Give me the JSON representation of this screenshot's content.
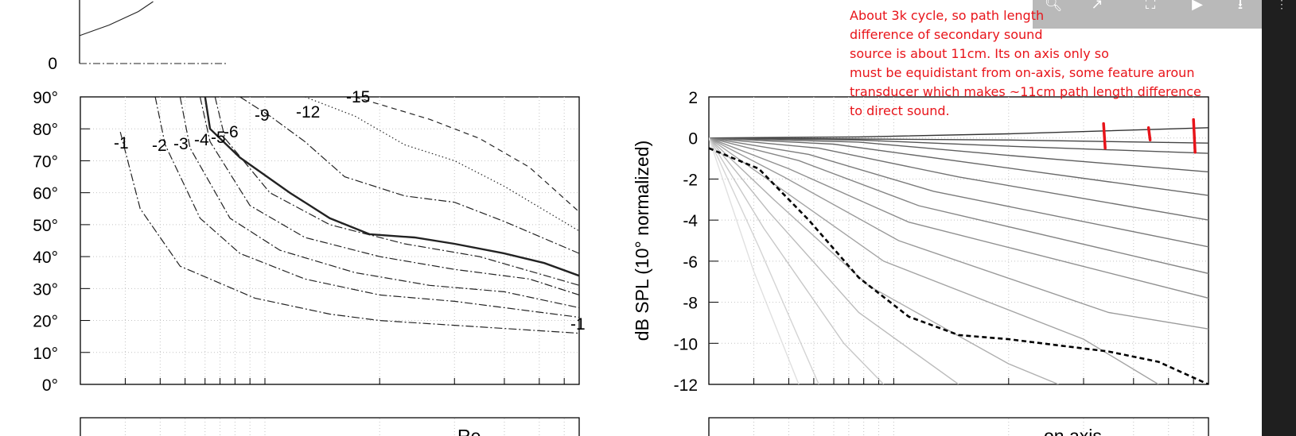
{
  "toolbar": {
    "icons": [
      "zoom-icon",
      "open-external-icon",
      "fullscreen-icon",
      "play-icon",
      "download-icon"
    ]
  },
  "annotation": {
    "lines": [
      "About 3k cycle, so path length",
      "difference of secondary sound",
      "source is about  11cm. Its on axis only so",
      "must be equidistant from  on-axis, some feature aroun",
      "transducer which makes ~11cm path length difference",
      "to direct sound."
    ],
    "color": "#e8141a"
  },
  "chart_data": [
    {
      "type": "line",
      "panel": "top-left-partial",
      "y_ticks": [
        "0"
      ],
      "series": [
        {
          "kind": "curve",
          "values": [
            [
              0,
              0.45
            ],
            [
              0.2,
              0.62
            ],
            [
              0.4,
              0.84
            ],
            [
              0.5,
              1.0
            ]
          ]
        },
        {
          "kind": "baseline",
          "style": "dash-dot",
          "values": [
            [
              0,
              0
            ],
            [
              1,
              0
            ]
          ]
        }
      ]
    },
    {
      "type": "line",
      "panel": "contour-polar",
      "y_ticks": [
        "90°",
        "80°",
        "70°",
        "60°",
        "50°",
        "40°",
        "30°",
        "20°",
        "10°",
        "0°"
      ],
      "ylim": [
        0,
        90
      ],
      "xscale": "log",
      "grid": true,
      "contour_labels": [
        "-1",
        "-2",
        "-3",
        "-4",
        "-5",
        "-6",
        "-9",
        "-12",
        "-15",
        "-1"
      ],
      "contours": [
        {
          "level": -1,
          "style": "dash-dot",
          "values": [
            [
              0.08,
              79
            ],
            [
              0.12,
              55
            ],
            [
              0.2,
              37
            ],
            [
              0.35,
              27
            ],
            [
              0.5,
              22
            ],
            [
              0.6,
              20
            ],
            [
              0.7,
              19
            ],
            [
              0.8,
              18
            ],
            [
              0.9,
              17
            ],
            [
              1.0,
              16
            ]
          ]
        },
        {
          "level": -2,
          "style": "dash-dot",
          "values": [
            [
              0.15,
              90
            ],
            [
              0.17,
              75
            ],
            [
              0.24,
              52
            ],
            [
              0.32,
              41
            ],
            [
              0.45,
              33
            ],
            [
              0.6,
              28
            ],
            [
              0.75,
              26
            ],
            [
              1.0,
              21
            ]
          ]
        },
        {
          "level": -3,
          "style": "dash-dot",
          "values": [
            [
              0.2,
              90
            ],
            [
              0.22,
              74
            ],
            [
              0.3,
              52
            ],
            [
              0.4,
              42
            ],
            [
              0.55,
              35
            ],
            [
              0.7,
              31
            ],
            [
              0.85,
              29
            ],
            [
              1.0,
              24
            ]
          ]
        },
        {
          "level": -4,
          "style": "dash-dot",
          "values": [
            [
              0.24,
              90
            ],
            [
              0.26,
              76
            ],
            [
              0.34,
              56
            ],
            [
              0.45,
              46
            ],
            [
              0.6,
              40
            ],
            [
              0.75,
              36
            ],
            [
              0.9,
              33
            ],
            [
              1.0,
              28
            ]
          ]
        },
        {
          "level": -5,
          "style": "dash-dot",
          "values": [
            [
              0.27,
              90
            ],
            [
              0.29,
              77
            ],
            [
              0.38,
              60
            ],
            [
              0.5,
              50
            ],
            [
              0.65,
              44
            ],
            [
              0.8,
              40
            ],
            [
              1.0,
              31
            ]
          ]
        },
        {
          "level": -6,
          "style": "solid-bold",
          "values": [
            [
              0.25,
              90
            ],
            [
              0.26,
              80
            ],
            [
              0.32,
              71
            ],
            [
              0.42,
              60
            ],
            [
              0.5,
              52
            ],
            [
              0.58,
              47
            ],
            [
              0.67,
              46
            ],
            [
              0.75,
              44
            ],
            [
              0.85,
              41
            ],
            [
              0.93,
              38
            ],
            [
              1.0,
              34
            ]
          ]
        },
        {
          "level": -9,
          "style": "dash-dot",
          "values": [
            [
              0.32,
              90
            ],
            [
              0.38,
              84
            ],
            [
              0.45,
              76
            ],
            [
              0.53,
              65
            ],
            [
              0.65,
              59
            ],
            [
              0.75,
              57
            ],
            [
              0.85,
              51
            ],
            [
              1.0,
              41
            ]
          ]
        },
        {
          "level": -12,
          "style": "dotted",
          "values": [
            [
              0.45,
              90
            ],
            [
              0.55,
              84
            ],
            [
              0.65,
              75
            ],
            [
              0.75,
              70
            ],
            [
              0.85,
              62
            ],
            [
              1.0,
              48
            ]
          ]
        },
        {
          "level": -15,
          "style": "dashed",
          "values": [
            [
              0.55,
              90
            ],
            [
              0.7,
              83
            ],
            [
              0.8,
              77
            ],
            [
              0.9,
              68
            ],
            [
              1.0,
              54
            ]
          ]
        }
      ]
    },
    {
      "type": "line",
      "panel": "normalized-spl",
      "ylabel": "dB SPL (10° normalized)",
      "y_ticks": [
        "2",
        "0",
        "-2",
        "-4",
        "-6",
        "-8",
        "-10",
        "-12"
      ],
      "ylim": [
        -12,
        2
      ],
      "xscale": "log",
      "grid": true,
      "series": [
        {
          "gray": "#333333",
          "values": [
            [
              0,
              0
            ],
            [
              0.3,
              0.05
            ],
            [
              0.6,
              0.2
            ],
            [
              0.8,
              0.35
            ],
            [
              1.0,
              0.5
            ]
          ]
        },
        {
          "gray": "#444444",
          "values": [
            [
              0,
              0
            ],
            [
              0.3,
              -0.05
            ],
            [
              0.6,
              -0.1
            ],
            [
              1.0,
              -0.25
            ]
          ]
        },
        {
          "gray": "#555555",
          "values": [
            [
              0,
              0
            ],
            [
              0.3,
              -0.1
            ],
            [
              0.6,
              -0.4
            ],
            [
              1.0,
              -0.75
            ]
          ]
        },
        {
          "gray": "#5f5f5f",
          "values": [
            [
              0,
              0
            ],
            [
              0.3,
              -0.2
            ],
            [
              0.6,
              -0.85
            ],
            [
              1.0,
              -1.65
            ]
          ]
        },
        {
          "gray": "#686868",
          "values": [
            [
              0,
              0
            ],
            [
              0.25,
              -0.3
            ],
            [
              0.55,
              -1.3
            ],
            [
              1.0,
              -2.8
            ]
          ]
        },
        {
          "gray": "#727272",
          "values": [
            [
              0,
              0
            ],
            [
              0.22,
              -0.5
            ],
            [
              0.5,
              -1.9
            ],
            [
              1.0,
              -4.0
            ]
          ]
        },
        {
          "gray": "#7c7c7c",
          "values": [
            [
              0,
              0
            ],
            [
              0.2,
              -0.8
            ],
            [
              0.45,
              -2.6
            ],
            [
              1.0,
              -5.3
            ]
          ]
        },
        {
          "gray": "#868686",
          "values": [
            [
              0,
              0
            ],
            [
              0.18,
              -1.1
            ],
            [
              0.42,
              -3.3
            ],
            [
              1.0,
              -6.6
            ]
          ]
        },
        {
          "gray": "#909090",
          "values": [
            [
              0,
              0
            ],
            [
              0.16,
              -1.5
            ],
            [
              0.4,
              -4.1
            ],
            [
              1.0,
              -7.8
            ]
          ]
        },
        {
          "gray": "#9a9a9a",
          "values": [
            [
              0,
              0
            ],
            [
              0.15,
              -1.9
            ],
            [
              0.38,
              -5.0
            ],
            [
              0.8,
              -8.5
            ],
            [
              1.0,
              -9.3
            ]
          ]
        },
        {
          "gray": "#a4a4a4",
          "values": [
            [
              0,
              0
            ],
            [
              0.14,
              -2.4
            ],
            [
              0.35,
              -6.0
            ],
            [
              0.75,
              -9.8
            ],
            [
              0.9,
              -12
            ]
          ]
        },
        {
          "gray": "#b0b0b0",
          "values": [
            [
              0,
              0
            ],
            [
              0.13,
              -3.0
            ],
            [
              0.32,
              -7.2
            ],
            [
              0.6,
              -11.0
            ],
            [
              0.7,
              -12
            ]
          ]
        },
        {
          "gray": "#bcbcbc",
          "values": [
            [
              0,
              0
            ],
            [
              0.12,
              -3.6
            ],
            [
              0.3,
              -8.5
            ],
            [
              0.5,
              -12
            ]
          ]
        },
        {
          "gray": "#c8c8c8",
          "values": [
            [
              0,
              0
            ],
            [
              0.11,
              -4.4
            ],
            [
              0.27,
              -10.0
            ],
            [
              0.35,
              -12
            ]
          ]
        },
        {
          "gray": "#d4d4d4",
          "values": [
            [
              0,
              0
            ],
            [
              0.1,
              -5.3
            ],
            [
              0.22,
              -12
            ]
          ]
        },
        {
          "gray": "#e0e0e0",
          "values": [
            [
              0,
              0
            ],
            [
              0.09,
              -6.5
            ],
            [
              0.18,
              -12
            ]
          ]
        },
        {
          "gray": "#000000",
          "dashed": true,
          "values": [
            [
              0,
              -0.5
            ],
            [
              0.1,
              -1.5
            ],
            [
              0.2,
              -4.0
            ],
            [
              0.3,
              -6.8
            ],
            [
              0.4,
              -8.7
            ],
            [
              0.5,
              -9.6
            ],
            [
              0.6,
              -9.8
            ],
            [
              0.7,
              -10.1
            ],
            [
              0.8,
              -10.4
            ],
            [
              0.9,
              -10.9
            ],
            [
              1.0,
              -12
            ]
          ]
        }
      ],
      "markers": [
        {
          "x": 0.79,
          "y1": 0.7,
          "y2": -0.5
        },
        {
          "x": 0.88,
          "y1": 0.5,
          "y2": -0.1
        },
        {
          "x": 0.97,
          "y1": 0.9,
          "y2": -0.7
        }
      ]
    },
    {
      "type": "line",
      "panel": "bottom-partial-left",
      "visible_text": "Re"
    },
    {
      "type": "line",
      "panel": "bottom-partial-right",
      "visible_text": "on axis"
    }
  ]
}
